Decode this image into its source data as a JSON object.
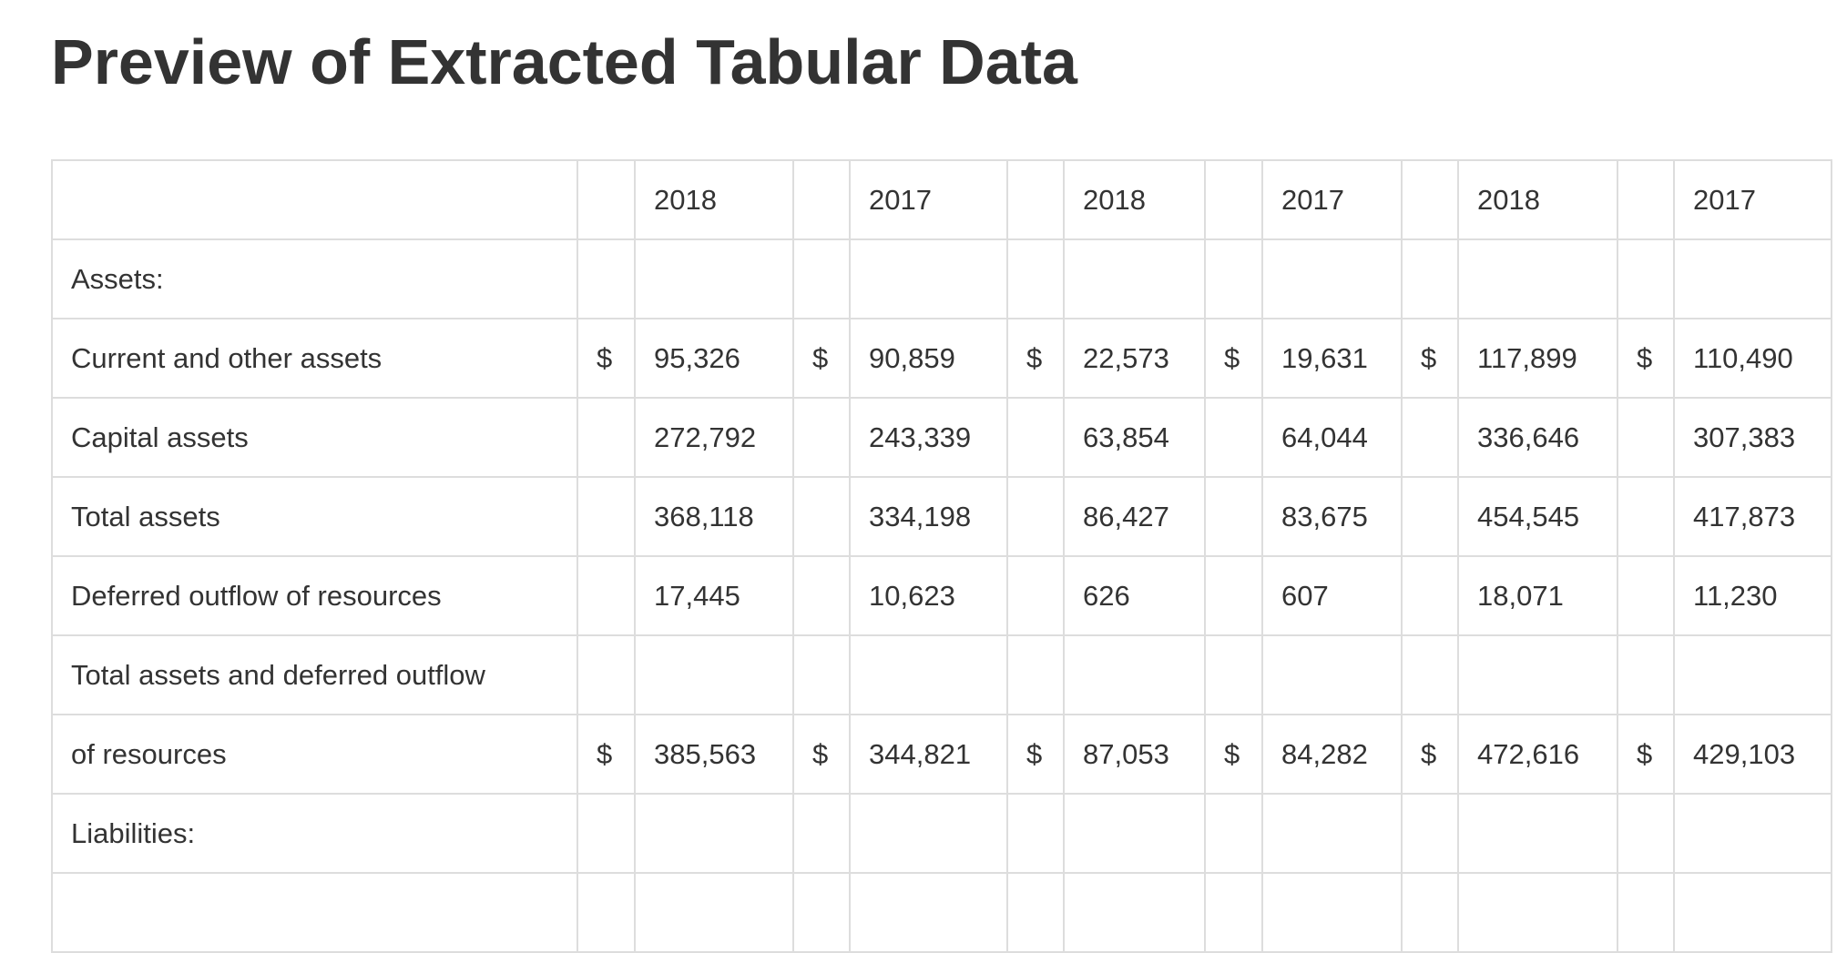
{
  "header": {
    "title": "Preview of Extracted Tabular Data"
  },
  "table": {
    "columns": [
      null,
      null,
      "2018",
      null,
      "2017",
      null,
      "2018",
      null,
      "2017",
      null,
      "2018",
      null,
      "2017"
    ],
    "rows": [
      [
        "Assets:",
        null,
        null,
        null,
        null,
        null,
        null,
        null,
        null,
        null,
        null,
        null,
        null
      ],
      [
        "Current and other assets",
        "$",
        "95,326",
        "$",
        "90,859",
        "$",
        "22,573",
        "$",
        "19,631",
        "$",
        "117,899",
        "$",
        "110,490"
      ],
      [
        "Capital assets",
        null,
        "272,792",
        null,
        "243,339",
        null,
        "63,854",
        null,
        "64,044",
        null,
        "336,646",
        null,
        "307,383"
      ],
      [
        "Total assets",
        null,
        "368,118",
        null,
        "334,198",
        null,
        "86,427",
        null,
        "83,675",
        null,
        "454,545",
        null,
        "417,873"
      ],
      [
        "Deferred outflow of resources",
        null,
        "17,445",
        null,
        "10,623",
        null,
        "626",
        null,
        "607",
        null,
        "18,071",
        null,
        "11,230"
      ],
      [
        "Total assets and deferred outflow",
        null,
        null,
        null,
        null,
        null,
        null,
        null,
        null,
        null,
        null,
        null,
        null
      ],
      [
        "of resources",
        "$",
        "385,563",
        "$",
        "344,821",
        "$",
        "87,053",
        "$",
        "84,282",
        "$",
        "472,616",
        "$",
        "429,103"
      ],
      [
        "Liabilities:",
        null,
        null,
        null,
        null,
        null,
        null,
        null,
        null,
        null,
        null,
        null,
        null
      ],
      [
        null,
        null,
        null,
        null,
        null,
        null,
        null,
        null,
        null,
        null,
        null,
        null,
        null
      ]
    ]
  }
}
